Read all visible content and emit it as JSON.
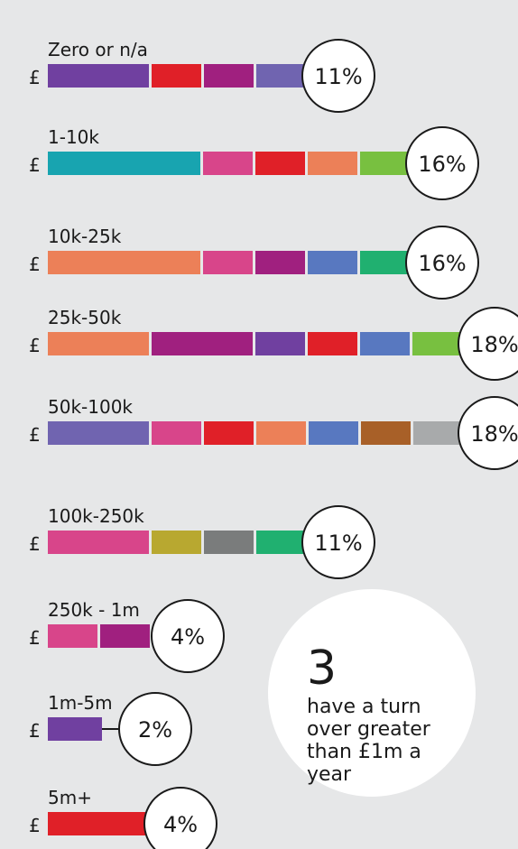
{
  "chart_data": {
    "type": "pictogram",
    "currency": "£",
    "categories": [
      "Zero or n/a",
      "1-10k",
      "10k-25k",
      "25k-50k",
      "50k-100k",
      "100k-250k",
      "250k - 1m",
      "1m-5m",
      "5m+"
    ],
    "values": [
      11,
      16,
      16,
      18,
      18,
      11,
      4,
      2,
      4
    ],
    "value_labels": [
      "11%",
      "16%",
      "16%",
      "18%",
      "18%",
      "11%",
      "4%",
      "2%",
      "4%"
    ],
    "segment_colors": [
      [
        "#7040a0",
        "#e02028",
        "#a0207f",
        "#7064b0"
      ],
      [
        "#18a4b0",
        "#d8458a",
        "#e02028",
        "#ec8058",
        "#78c040"
      ],
      [
        "#ec8058",
        "#d8458a",
        "#a0207f",
        "#5878c0",
        "#20b070"
      ],
      [
        "#ec8058",
        "#a0207f",
        "#7040a0",
        "#e02028",
        "#5878c0",
        "#78c040"
      ],
      [
        "#7064b0",
        "#d8458a",
        "#e02028",
        "#ec8058",
        "#5878c0",
        "#a86028",
        "#a8aaab"
      ],
      [
        "#d8458a",
        "#b8a830",
        "#7a7c7c",
        "#20b070"
      ],
      [
        "#d8458a",
        "#a0207f"
      ],
      [
        "#7040a0"
      ],
      [
        "#e02028"
      ]
    ],
    "annotation": {
      "number": 3,
      "lines": [
        "have a turn",
        "over greater",
        "than £1m a",
        "year"
      ]
    }
  }
}
